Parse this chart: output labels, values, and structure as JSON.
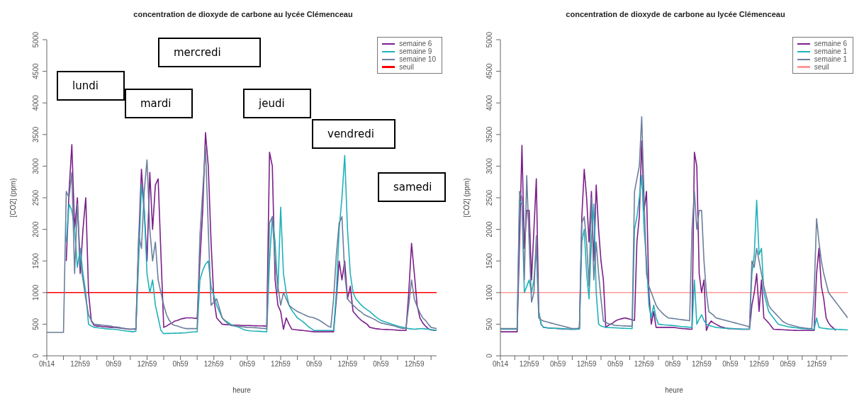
{
  "chart_data": [
    {
      "type": "line",
      "title": "concentration de dioxyde de carbone au lycée Clémenceau",
      "xlabel": "heure",
      "ylabel": "[CO2] (ppm)",
      "ylim": [
        0,
        5000
      ],
      "yticks": [
        0,
        500,
        1000,
        1500,
        2000,
        2500,
        3000,
        3500,
        4000,
        4500,
        5000
      ],
      "categories": [
        "0h14",
        null,
        null,
        null,
        null,
        null,
        null,
        null,
        null,
        null,
        null,
        null,
        "12h59",
        null,
        null,
        null,
        null,
        null,
        null,
        null,
        null,
        null,
        null,
        null,
        "0h59",
        null,
        null,
        null,
        null,
        null,
        null,
        null,
        null,
        null,
        null,
        null,
        "12h59",
        null,
        null,
        null,
        null,
        null,
        null,
        null,
        null,
        null,
        null,
        null,
        "0h59",
        null,
        null,
        null,
        null,
        null,
        null,
        null,
        null,
        null,
        null,
        null,
        "12h59",
        null,
        null,
        null,
        null,
        null,
        null,
        null,
        null,
        null,
        null,
        null,
        "0h59",
        null,
        null,
        null,
        null,
        null,
        null,
        null,
        null,
        null,
        null,
        null,
        "12h59",
        null,
        null,
        null,
        null,
        null,
        null,
        null,
        null,
        null,
        null,
        null,
        "0h59",
        null,
        null,
        null,
        null,
        null,
        null,
        null,
        null,
        null,
        null,
        null,
        "12h59",
        null,
        null,
        null,
        null,
        null,
        null,
        null,
        null,
        null,
        null,
        null,
        "0h59",
        null,
        null,
        null,
        null,
        null,
        null,
        null,
        null,
        null,
        null,
        null,
        "12h59",
        null,
        null,
        null,
        null,
        null,
        null,
        null,
        null
      ],
      "legend": "top right",
      "marker": "none",
      "line_style": "solid",
      "series": [
        {
          "name": "semaine 6",
          "color": "#7b1f8a",
          "values": [
            null,
            null,
            null,
            null,
            null,
            null,
            null,
            1500,
            2600,
            3340,
            2000,
            2500,
            1300,
            2000,
            2500,
            1000,
            550,
            480,
            470,
            470,
            460,
            460,
            455,
            450,
            450,
            445,
            440,
            435,
            430,
            425,
            420,
            420,
            420,
            1800,
            2950,
            2300,
            1500,
            2900,
            2000,
            2700,
            2800,
            1600,
            450,
            470,
            500,
            520,
            550,
            560,
            580,
            590,
            600,
            600,
            600,
            595,
            590,
            1500,
            2300,
            3530,
            3000,
            1800,
            900,
            600,
            550,
            500,
            495,
            490,
            490,
            485,
            485,
            485,
            480,
            480,
            480,
            478,
            476,
            475,
            474,
            473,
            472,
            470,
            3220,
            3000,
            1200,
            800,
            700,
            420,
            600,
            500,
            420,
            415,
            410,
            405,
            400,
            395,
            390,
            385,
            380,
            380,
            380,
            380,
            380,
            380,
            380,
            380,
            900,
            1500,
            1200,
            1500,
            900,
            1100,
            700,
            650,
            600,
            560,
            530,
            500,
            450,
            440,
            430,
            425,
            420,
            418,
            416,
            414,
            412,
            410,
            405,
            402,
            400,
            400,
            1000,
            1780,
            1300,
            800,
            600,
            520,
            470,
            430,
            410,
            405,
            400
          ]
        },
        {
          "name": "semaine 9",
          "color": "#20b2b8",
          "values": [
            null,
            null,
            null,
            null,
            null,
            null,
            null,
            1800,
            2400,
            2300,
            2000,
            1400,
            1700,
            1300,
            1000,
            500,
            470,
            450,
            445,
            440,
            435,
            430,
            425,
            422,
            420,
            415,
            410,
            400,
            395,
            390,
            385,
            380,
            390,
            1500,
            2700,
            2300,
            1300,
            1000,
            1200,
            800,
            600,
            400,
            350,
            355,
            355,
            356,
            357,
            358,
            360,
            362,
            365,
            370,
            375,
            378,
            380,
            1200,
            1350,
            1450,
            1500,
            1100,
            950,
            800,
            700,
            600,
            560,
            530,
            500,
            480,
            465,
            450,
            430,
            410,
            400,
            395,
            392,
            390,
            388,
            385,
            382,
            380,
            1500,
            2200,
            1800,
            1000,
            2350,
            1300,
            1000,
            800,
            720,
            660,
            600,
            570,
            540,
            500,
            460,
            430,
            400,
            400,
            400,
            400,
            400,
            400,
            400,
            400,
            1000,
            2000,
            2500,
            3170,
            2000,
            1300,
            1000,
            900,
            850,
            800,
            760,
            730,
            700,
            660,
            620,
            590,
            560,
            545,
            530,
            515,
            500,
            485,
            470,
            460,
            450,
            440,
            430,
            425,
            420,
            425,
            428,
            430,
            425,
            420,
            415,
            410,
            400
          ]
        },
        {
          "name": "semaine 10",
          "color": "#6b7f9c",
          "values": [
            370,
            370,
            370,
            370,
            370,
            370,
            370,
            2600,
            2500,
            2900,
            1300,
            2400,
            1500,
            1200,
            900,
            650,
            560,
            500,
            495,
            490,
            485,
            480,
            475,
            470,
            460,
            455,
            450,
            440,
            430,
            425,
            420,
            425,
            430,
            1900,
            1700,
            2600,
            3100,
            2000,
            1500,
            1800,
            1200,
            1000,
            800,
            650,
            560,
            500,
            480,
            470,
            455,
            440,
            430,
            430,
            430,
            430,
            430,
            1900,
            2600,
            3300,
            2000,
            800,
            850,
            900,
            750,
            600,
            550,
            510,
            480,
            475,
            470,
            465,
            460,
            455,
            450,
            448,
            446,
            444,
            440,
            436,
            433,
            430,
            2100,
            2200,
            1500,
            1100,
            800,
            1000,
            900,
            800,
            760,
            730,
            700,
            680,
            660,
            640,
            620,
            610,
            600,
            580,
            560,
            530,
            500,
            470,
            450,
            900,
            1600,
            2100,
            2200,
            1300,
            900,
            850,
            800,
            760,
            720,
            690,
            650,
            630,
            610,
            590,
            570,
            540,
            520,
            510,
            500,
            490,
            480,
            470,
            455,
            440,
            430,
            440,
            800,
            1200,
            900,
            780,
            680,
            600,
            560,
            500,
            450,
            440,
            430
          ]
        }
      ],
      "ref_lines": [
        {
          "axis": "y",
          "value": 1000,
          "label": "seuil",
          "color": "#ff0000"
        }
      ],
      "annotations": [
        "lundi",
        "mardi",
        "mercredi",
        "jeudi",
        "vendredi",
        "samedi"
      ]
    },
    {
      "type": "line",
      "title": "concentration de dioxyde de carbone au lycée Clémenceau",
      "xlabel": "heure",
      "ylabel": "[CO2] (ppm)",
      "ylim": [
        0,
        5000
      ],
      "yticks": [
        0,
        500,
        1000,
        1500,
        2000,
        2500,
        3000,
        3500,
        4000,
        4500,
        5000
      ],
      "categories": [
        "0h14",
        null,
        null,
        null,
        null,
        null,
        null,
        null,
        null,
        null,
        null,
        null,
        "12h59",
        null,
        null,
        null,
        null,
        null,
        null,
        null,
        null,
        null,
        null,
        null,
        "0h59",
        null,
        null,
        null,
        null,
        null,
        null,
        null,
        null,
        null,
        null,
        null,
        "12h59",
        null,
        null,
        null,
        null,
        null,
        null,
        null,
        null,
        null,
        null,
        null,
        "0h59",
        null,
        null,
        null,
        null,
        null,
        null,
        null,
        null,
        null,
        null,
        null,
        "12h59",
        null,
        null,
        null,
        null,
        null,
        null,
        null,
        null,
        null,
        null,
        null,
        "0h59",
        null,
        null,
        null,
        null,
        null,
        null,
        null,
        null,
        null,
        null,
        null,
        "12h59",
        null,
        null,
        null,
        null,
        null,
        null,
        null,
        null,
        null,
        null,
        null,
        "0h59",
        null,
        null,
        null,
        null,
        null,
        null,
        null,
        null,
        null,
        null,
        null,
        "12h59",
        null,
        null,
        null,
        null,
        null,
        null,
        null,
        null,
        null,
        null,
        null,
        "0h59",
        null,
        null,
        null,
        null,
        null,
        null,
        null,
        null,
        null,
        null,
        null,
        "12h59",
        null,
        null,
        null,
        null,
        null,
        null,
        null,
        null,
        null,
        null,
        null,
        null,
        null
      ],
      "legend": "top right",
      "marker": "none",
      "line_style": "solid",
      "series": [
        {
          "name": "semaine 6",
          "color": "#7b1f8a",
          "values": [
            380,
            380,
            380,
            380,
            380,
            380,
            380,
            380,
            1800,
            3330,
            1700,
            2300,
            2300,
            1200,
            2000,
            2800,
            700,
            500,
            450,
            445,
            440,
            440,
            435,
            435,
            430,
            430,
            425,
            425,
            420,
            420,
            420,
            420,
            425,
            430,
            2200,
            2950,
            2500,
            1800,
            2600,
            1500,
            2700,
            2000,
            1500,
            1200,
            450,
            480,
            500,
            520,
            550,
            570,
            580,
            590,
            600,
            590,
            580,
            570,
            560,
            1800,
            2200,
            3400,
            2300,
            2600,
            1000,
            500,
            700,
            450,
            450,
            450,
            450,
            450,
            450,
            450,
            450,
            445,
            440,
            435,
            430,
            428,
            425,
            422,
            420,
            3220,
            3000,
            1300,
            1000,
            1200,
            400,
            500,
            550,
            520,
            500,
            480,
            460,
            450,
            440,
            430,
            430,
            428,
            426,
            424,
            422,
            420,
            420,
            420,
            420,
            800,
            1000,
            1300,
            700,
            1200,
            600,
            560,
            520,
            470,
            420,
            418,
            416,
            414,
            412,
            410,
            408,
            406,
            404,
            402,
            400,
            400,
            400,
            400,
            400,
            400,
            400,
            400,
            1300,
            1700,
            1100,
            900,
            600,
            520,
            470,
            440,
            400,
            null,
            null,
            null,
            null,
            null
          ]
        },
        {
          "name": "semaine 1",
          "color": "#20b2b8",
          "values": [
            420,
            420,
            420,
            420,
            420,
            420,
            420,
            420,
            2450,
            2400,
            1000,
            1100,
            1200,
            1000,
            1200,
            1700,
            700,
            500,
            450,
            445,
            440,
            438,
            436,
            434,
            432,
            430,
            428,
            426,
            424,
            422,
            420,
            420,
            420,
            420,
            1800,
            2000,
            1300,
            900,
            1800,
            2400,
            1000,
            500,
            470,
            460,
            450,
            448,
            446,
            444,
            442,
            440,
            438,
            436,
            434,
            432,
            431,
            430,
            2000,
            2200,
            2500,
            2850,
            2000,
            1500,
            800,
            600,
            800,
            600,
            500,
            495,
            490,
            488,
            485,
            483,
            480,
            475,
            470,
            465,
            460,
            458,
            455,
            452,
            450,
            1200,
            500,
            580,
            650,
            560,
            500,
            480,
            470,
            460,
            450,
            445,
            440,
            438,
            436,
            434,
            432,
            430,
            428,
            426,
            424,
            422,
            421,
            420,
            420,
            1300,
            1600,
            2460,
            1600,
            1700,
            1000,
            850,
            700,
            650,
            600,
            550,
            500,
            490,
            480,
            470,
            460,
            455,
            450,
            445,
            440,
            435,
            430,
            428,
            425,
            422,
            420,
            420,
            600,
            450,
            440,
            435,
            430,
            425,
            424,
            422,
            420,
            418,
            416,
            414,
            412,
            410
          ]
        },
        {
          "name": "semaine 1",
          "color": "#6b7f9c",
          "values": [
            430,
            430,
            430,
            430,
            430,
            430,
            430,
            430,
            2600,
            2500,
            1200,
            2850,
            1800,
            850,
            1000,
            1900,
            600,
            570,
            550,
            540,
            530,
            520,
            510,
            500,
            490,
            480,
            470,
            460,
            450,
            440,
            430,
            432,
            435,
            440,
            2100,
            2200,
            1800,
            1100,
            2500,
            1200,
            1800,
            1300,
            900,
            550,
            530,
            510,
            500,
            490,
            480,
            478,
            476,
            474,
            472,
            470,
            470,
            470,
            2600,
            2800,
            3000,
            3780,
            2500,
            1300,
            1100,
            1000,
            900,
            800,
            740,
            700,
            660,
            630,
            600,
            595,
            590,
            585,
            580,
            575,
            570,
            565,
            560,
            555,
            2000,
            2600,
            2000,
            2300,
            2300,
            1500,
            1000,
            700,
            670,
            640,
            600,
            590,
            580,
            570,
            560,
            550,
            540,
            530,
            520,
            510,
            500,
            490,
            480,
            470,
            450,
            1500,
            1400,
            1700,
            1500,
            1300,
            1100,
            950,
            800,
            740,
            700,
            660,
            620,
            580,
            540,
            520,
            500,
            490,
            480,
            470,
            460,
            450,
            445,
            440,
            435,
            430,
            430,
            1000,
            2170,
            1800,
            1500,
            1300,
            1150,
            1000,
            950,
            900,
            850,
            800,
            750,
            700,
            650,
            600
          ]
        }
      ],
      "ref_lines": [
        {
          "axis": "y",
          "value": 1000,
          "label": "seuil",
          "color": "#ff9a9a"
        }
      ]
    }
  ]
}
